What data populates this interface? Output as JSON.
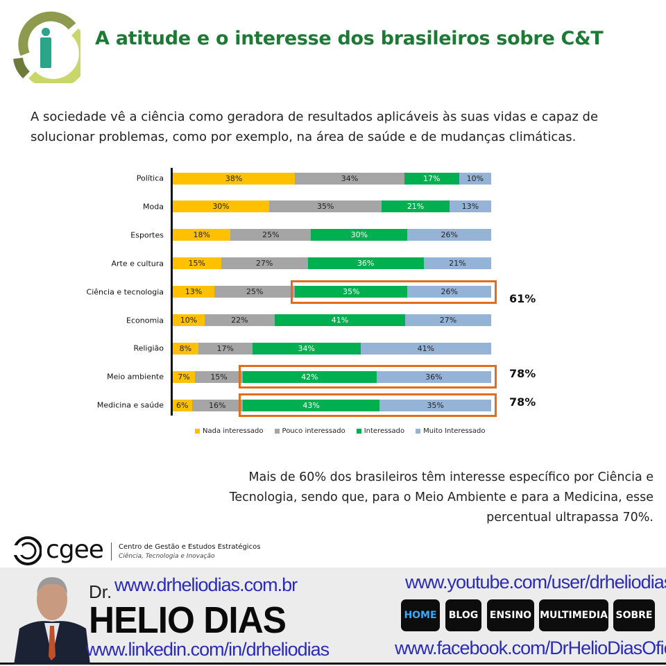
{
  "header": {
    "title": "A atitude e o interesse dos brasileiros sobre C&T"
  },
  "intro": [
    "A sociedade vê a ciência como geradora de resultados aplicáveis às suas vidas e capaz de",
    "solucionar problemas, como por exemplo, na área de saúde e de mudanças climáticas."
  ],
  "chart_data": {
    "type": "bar",
    "stacked": true,
    "orientation": "horizontal",
    "categories": [
      "Política",
      "Moda",
      "Esportes",
      "Arte e cultura",
      "Ciência e tecnologia",
      "Economia",
      "Religião",
      "Meio ambiente",
      "Medicina e saúde"
    ],
    "series": [
      {
        "name": "Nada interessado",
        "color": "#ffc000",
        "values": [
          38,
          30,
          18,
          15,
          13,
          10,
          8,
          7,
          6
        ]
      },
      {
        "name": "Pouco interessado",
        "color": "#a5a5a5",
        "values": [
          34,
          35,
          25,
          27,
          25,
          22,
          17,
          15,
          16
        ]
      },
      {
        "name": "Interessado",
        "color": "#00b050",
        "values": [
          17,
          21,
          30,
          36,
          35,
          41,
          34,
          42,
          43
        ]
      },
      {
        "name": "Muito Interessado",
        "color": "#95b3d7",
        "values": [
          10,
          13,
          26,
          21,
          26,
          27,
          41,
          36,
          35
        ]
      }
    ],
    "unit": "%",
    "legend": "bottom",
    "highlights": [
      {
        "category": "Ciência e tecnologia",
        "label": "61%"
      },
      {
        "category": "Meio ambiente",
        "label": "78%"
      },
      {
        "category": "Medicina e saúde",
        "label": "78%"
      }
    ]
  },
  "note": [
    "Mais de 60% dos brasileiros têm interesse específico por Ciência e",
    "Tecnologia, sendo que, para o Meio Ambiente e para a Medicina, esse",
    "percentual ultrapassa 70%."
  ],
  "source": {
    "logo": "cgee",
    "name": "Centro de Gestão e Estudos Estratégicos",
    "tagline": "Ciência, Tecnologia e Inovação"
  },
  "banner": {
    "dr": "Dr.",
    "name": "HELIO DIAS",
    "site": "www.drheliodias.com.br",
    "linkedin": "www.linkedin.com/in/drheliodias",
    "youtube": "www.youtube.com/user/drheliodias",
    "facebook": "www.facebook.com/DrHelioDiasOficial",
    "nav": [
      "HOME",
      "BLOG",
      "ENSINO",
      "MULTIMEDIA",
      "SOBRE"
    ]
  }
}
